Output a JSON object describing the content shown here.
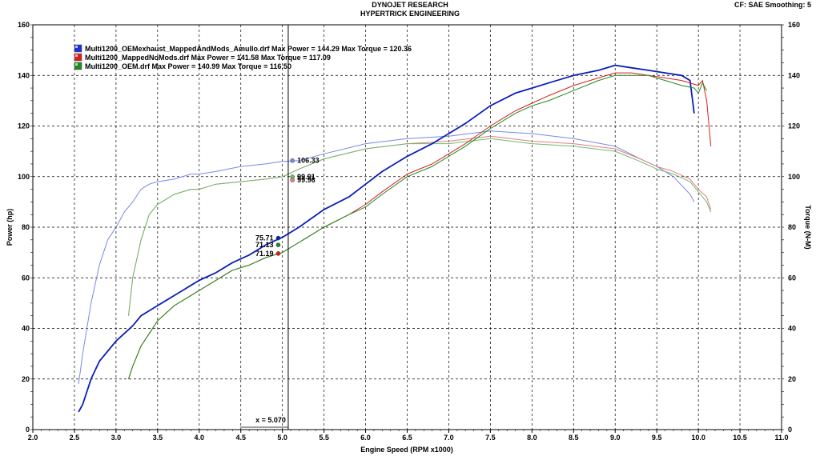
{
  "header": {
    "line1": "DYNOJET RESEARCH",
    "line2": "HYPERTRICK ENGINEERING",
    "settings": "CF: SAE  Smoothing: 5"
  },
  "chart_data": {
    "type": "line",
    "xlabel": "Engine Speed (RPM x1000)",
    "ylabel_left": "Power (hp)",
    "ylabel_right": "Torque (N-M)",
    "xlim": [
      2.0,
      11.0
    ],
    "ylim_left": [
      0,
      160
    ],
    "ylim_right": [
      0,
      160
    ],
    "x_ticks": [
      "2.0",
      "2.5",
      "3.0",
      "3.5",
      "4.0",
      "4.5",
      "5.0",
      "5.5",
      "6.0",
      "6.5",
      "7.0",
      "7.5",
      "8.0",
      "8.5",
      "9.0",
      "9.5",
      "10.0",
      "10.5",
      "11.0"
    ],
    "y_ticks_left": [
      "0",
      "20",
      "40",
      "60",
      "80",
      "100",
      "120",
      "140",
      "160"
    ],
    "y_ticks_right": [
      "0",
      "20",
      "40",
      "60",
      "80",
      "100",
      "120",
      "140",
      "160"
    ],
    "grid": true,
    "cursor": {
      "x": 5.07,
      "label": "x = 5.070"
    },
    "legend": [
      {
        "text": "Multi1200_OEMexhaust_MappedAndMods_Amullo.drf Max Power = 144.29 Max Torque = 120.36",
        "color": "#1a2fd6"
      },
      {
        "text": "Multi1200_MappedNoMods.drf Max Power = 141.58 Max Torque = 117.09",
        "color": "#d62020"
      },
      {
        "text": "Multi1200_OEM.drf Max Power = 140.99 Max Torque = 116.50",
        "color": "#1f8a1f"
      }
    ],
    "series": [
      {
        "name": "Multi1200_OEMexhaust_MappedAndMods_Amullo.drf",
        "kind": "power",
        "color": "#0a1fb8",
        "x": [
          2.55,
          2.6,
          2.7,
          2.8,
          2.9,
          3.0,
          3.1,
          3.2,
          3.3,
          3.4,
          3.5,
          3.6,
          3.7,
          3.8,
          3.9,
          4.0,
          4.2,
          4.4,
          4.6,
          4.8,
          5.0,
          5.2,
          5.5,
          5.8,
          6.0,
          6.2,
          6.5,
          6.8,
          7.0,
          7.2,
          7.5,
          7.8,
          8.0,
          8.2,
          8.5,
          8.8,
          9.0,
          9.2,
          9.4,
          9.6,
          9.8,
          9.9,
          9.95
        ],
        "y": [
          7,
          10,
          20,
          27,
          31,
          35,
          38,
          41,
          45,
          47,
          49,
          51,
          53,
          55,
          57,
          59,
          62,
          66,
          69,
          73,
          76,
          80,
          87,
          92,
          97,
          102,
          108,
          113,
          117,
          121,
          128,
          133,
          135,
          137,
          140,
          142,
          144,
          143,
          142,
          141,
          140,
          138,
          125
        ]
      },
      {
        "name": "Multi1200_MappedNoMods.drf",
        "kind": "power",
        "color": "#d62020",
        "x": [
          3.15,
          3.2,
          3.3,
          3.4,
          3.5,
          3.6,
          3.7,
          3.8,
          3.9,
          4.0,
          4.2,
          4.4,
          4.6,
          4.8,
          5.0,
          5.2,
          5.5,
          5.8,
          6.0,
          6.2,
          6.5,
          6.8,
          7.0,
          7.2,
          7.5,
          7.8,
          8.0,
          8.2,
          8.5,
          8.8,
          9.0,
          9.2,
          9.4,
          9.6,
          9.8,
          10.0,
          10.05,
          10.1,
          10.15
        ],
        "y": [
          20,
          25,
          33,
          38,
          43,
          46,
          49,
          51,
          53,
          55,
          59,
          63,
          65,
          68,
          70,
          74,
          80,
          85,
          89,
          94,
          101,
          105,
          109,
          113,
          120,
          126,
          129,
          132,
          136,
          139,
          141,
          141,
          140,
          139,
          138,
          136,
          138,
          130,
          112
        ]
      },
      {
        "name": "Multi1200_OEM.drf",
        "kind": "power",
        "color": "#1f8a1f",
        "x": [
          3.15,
          3.2,
          3.3,
          3.4,
          3.5,
          3.6,
          3.7,
          3.8,
          3.9,
          4.0,
          4.2,
          4.4,
          4.6,
          4.8,
          5.0,
          5.2,
          5.5,
          5.8,
          6.0,
          6.2,
          6.5,
          6.8,
          7.0,
          7.2,
          7.5,
          7.8,
          8.0,
          8.2,
          8.5,
          8.8,
          9.0,
          9.2,
          9.4,
          9.6,
          9.8,
          9.95,
          10.0,
          10.05,
          10.1
        ],
        "y": [
          20,
          25,
          33,
          38,
          43,
          46,
          49,
          51,
          53,
          55,
          59,
          63,
          65,
          68,
          70,
          74,
          80,
          85,
          88,
          93,
          100,
          104,
          108,
          112,
          119,
          125,
          128,
          130,
          134,
          138,
          140,
          140,
          140,
          138,
          136,
          135,
          133,
          137,
          134
        ]
      },
      {
        "name": "Multi1200_OEMexhaust_MappedAndMods_Amullo.drf",
        "kind": "torque",
        "color": "#7b86e8",
        "x": [
          2.55,
          2.6,
          2.7,
          2.8,
          2.9,
          3.0,
          3.1,
          3.2,
          3.3,
          3.4,
          3.5,
          3.7,
          3.9,
          4.0,
          4.2,
          4.5,
          4.8,
          5.0,
          5.2,
          5.5,
          6.0,
          6.5,
          7.0,
          7.5,
          8.0,
          8.5,
          9.0,
          9.3,
          9.5,
          9.7,
          9.9,
          9.95
        ],
        "y": [
          18,
          30,
          50,
          65,
          75,
          80,
          86,
          90,
          95,
          97,
          98,
          99,
          101,
          101,
          102,
          104,
          105,
          106,
          106.3,
          109,
          113,
          115,
          116,
          118,
          117,
          115,
          112,
          107,
          104,
          100,
          93,
          90
        ]
      },
      {
        "name": "Multi1200_MappedNoMods.drf",
        "kind": "torque",
        "color": "#e07f7f",
        "x": [
          3.15,
          3.2,
          3.3,
          3.4,
          3.5,
          3.7,
          3.9,
          4.0,
          4.2,
          4.5,
          4.8,
          5.0,
          5.2,
          5.5,
          6.0,
          6.5,
          7.0,
          7.5,
          8.0,
          8.5,
          9.0,
          9.3,
          9.5,
          9.7,
          9.9,
          10.0,
          10.1,
          10.15
        ],
        "y": [
          45,
          60,
          75,
          85,
          89,
          93,
          95,
          95,
          97,
          98,
          99,
          99.96,
          103,
          107,
          111,
          113,
          114,
          116,
          114,
          113,
          111,
          107,
          104,
          102,
          99,
          95,
          92,
          87
        ]
      },
      {
        "name": "Multi1200_OEM.drf",
        "kind": "torque",
        "color": "#6fb86f",
        "x": [
          3.15,
          3.2,
          3.3,
          3.4,
          3.5,
          3.7,
          3.9,
          4.0,
          4.2,
          4.5,
          4.8,
          5.0,
          5.2,
          5.5,
          6.0,
          6.5,
          7.0,
          7.5,
          8.0,
          8.5,
          9.0,
          9.3,
          9.5,
          9.7,
          9.9,
          10.0,
          10.1,
          10.15
        ],
        "y": [
          45,
          60,
          75,
          85,
          89,
          93,
          95,
          95,
          97,
          98,
          99,
          99.91,
          103,
          107,
          111,
          113,
          113,
          115,
          113,
          112,
          110,
          106,
          103,
          101,
          98,
          94,
          90,
          86
        ]
      }
    ],
    "markers": [
      {
        "x": 5.12,
        "y": 106.33,
        "label": "106.33",
        "color": "#7b86e8"
      },
      {
        "x": 5.12,
        "y": 99.91,
        "label": "99.91",
        "color": "#6fb86f"
      },
      {
        "x": 5.12,
        "y": 98.6,
        "label": "99.96",
        "color": "#e07f7f"
      },
      {
        "x": 4.95,
        "y": 75.71,
        "label": "75.71",
        "color": "#0a1fb8"
      },
      {
        "x": 4.95,
        "y": 73.0,
        "label": "71.13",
        "color": "#1f8a1f"
      },
      {
        "x": 4.95,
        "y": 69.6,
        "label": "71.19",
        "color": "#d62020"
      }
    ]
  }
}
